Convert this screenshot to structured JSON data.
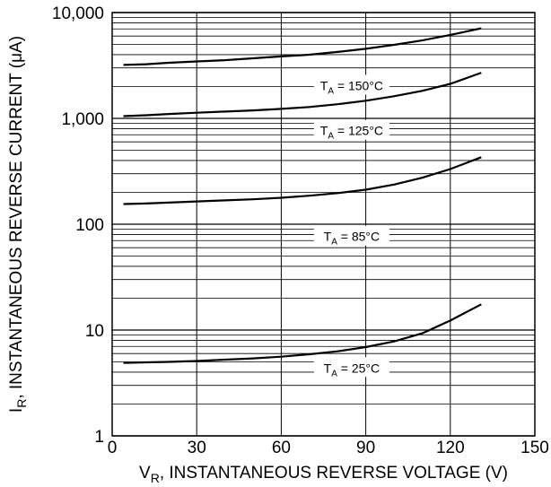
{
  "chart_data": {
    "type": "line",
    "xlabel": "V",
    "xlabel_sub": "R",
    "xlabel_rest": ", INSTANTANEOUS REVERSE VOLTAGE (V)",
    "ylabel": "I",
    "ylabel_sub": "R",
    "ylabel_rest": ", INSTANTANEOUS REVERSE CURRENT (μA)",
    "xlim": [
      0,
      150
    ],
    "ylim": [
      1,
      10000
    ],
    "y_scale": "log",
    "grid": true,
    "x_ticks": [
      0,
      30,
      60,
      90,
      120,
      150
    ],
    "x_tick_labels": [
      "0",
      "30",
      "60",
      "90",
      "120",
      "150"
    ],
    "y_ticks": [
      1,
      10,
      100,
      1000,
      10000
    ],
    "y_tick_labels": [
      "1",
      "10",
      "100",
      "1,000",
      "10,000"
    ],
    "series": [
      {
        "label_main": "T",
        "label_sub": "A",
        "label_rest": " = 150°C",
        "label_at": [
          85,
          2000
        ],
        "x": [
          4,
          12,
          20,
          30,
          40,
          50,
          60,
          70,
          80,
          90,
          100,
          110,
          120,
          131
        ],
        "values": [
          3200,
          3250,
          3350,
          3450,
          3550,
          3700,
          3850,
          4000,
          4250,
          4550,
          4950,
          5450,
          6150,
          7100
        ]
      },
      {
        "label_main": "T",
        "label_sub": "A",
        "label_rest": " = 125°C",
        "label_at": [
          85,
          750
        ],
        "x": [
          4,
          12,
          20,
          30,
          40,
          50,
          60,
          70,
          80,
          90,
          100,
          110,
          120,
          131
        ],
        "values": [
          1050,
          1070,
          1100,
          1130,
          1160,
          1190,
          1230,
          1280,
          1360,
          1470,
          1620,
          1820,
          2120,
          2700
        ]
      },
      {
        "label_main": "T",
        "label_sub": "A",
        "label_rest": " = 85°C",
        "label_at": [
          85,
          75
        ],
        "x": [
          4,
          12,
          20,
          30,
          40,
          50,
          60,
          70,
          80,
          90,
          100,
          110,
          120,
          131
        ],
        "values": [
          155,
          157,
          160,
          164,
          168,
          172,
          178,
          186,
          197,
          212,
          237,
          275,
          332,
          430
        ]
      },
      {
        "label_main": "T",
        "label_sub": "A",
        "label_rest": " = 25°C",
        "label_at": [
          85,
          4.3
        ],
        "x": [
          4,
          12,
          20,
          30,
          40,
          50,
          60,
          70,
          80,
          90,
          100,
          110,
          120,
          131
        ],
        "values": [
          4.9,
          4.95,
          5.0,
          5.1,
          5.25,
          5.4,
          5.6,
          5.9,
          6.3,
          6.9,
          7.8,
          9.3,
          12.3,
          17.5
        ]
      }
    ]
  }
}
